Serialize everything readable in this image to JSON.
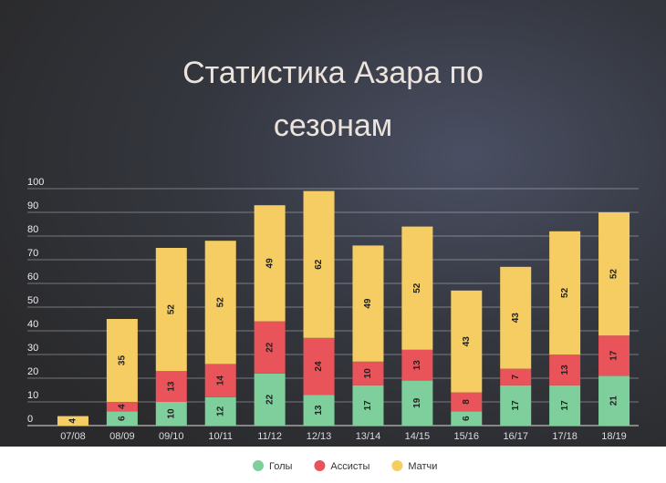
{
  "chart_data": {
    "type": "stacked_bar",
    "title": [
      "Статистика Азара по",
      "сезонам"
    ],
    "categories": [
      "07/08",
      "08/09",
      "09/10",
      "10/11",
      "11/12",
      "12/13",
      "13/14",
      "14/15",
      "15/16",
      "16/17",
      "17/18",
      "18/19"
    ],
    "series": [
      {
        "name": "Голы",
        "color": "#7fcf9c",
        "values": [
          0,
          6,
          10,
          12,
          22,
          13,
          17,
          19,
          6,
          17,
          17,
          21
        ]
      },
      {
        "name": "Ассисты",
        "color": "#e8545a",
        "values": [
          0,
          4,
          13,
          14,
          22,
          24,
          10,
          13,
          8,
          7,
          13,
          17
        ]
      },
      {
        "name": "Матчи",
        "color": "#f5cd62",
        "values": [
          4,
          35,
          52,
          52,
          49,
          62,
          49,
          52,
          43,
          43,
          52,
          52
        ]
      }
    ],
    "ylim": [
      0,
      100
    ],
    "yticks": [
      0,
      10,
      20,
      30,
      40,
      50,
      60,
      70,
      80,
      90,
      100
    ],
    "grid": true,
    "legend": "bottom"
  }
}
